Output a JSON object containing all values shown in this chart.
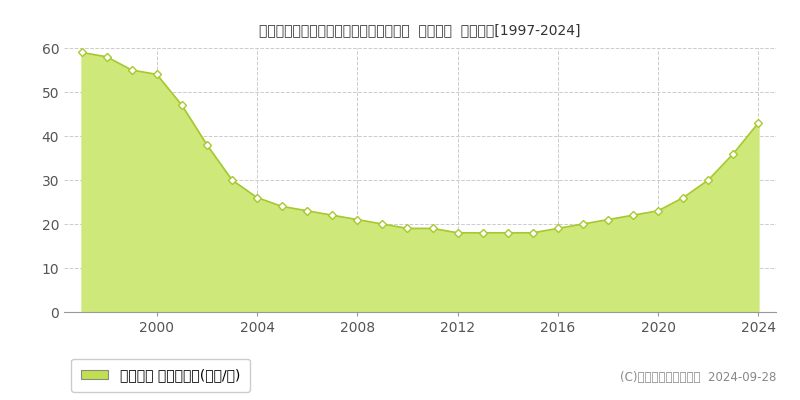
{
  "title": "福岡県福岡市東区多の津２丁目７番２２  基準地価  地価推移[1997-2024]",
  "years": [
    1997,
    1998,
    1999,
    2000,
    2001,
    2002,
    2003,
    2004,
    2005,
    2006,
    2007,
    2008,
    2009,
    2010,
    2011,
    2012,
    2013,
    2014,
    2015,
    2016,
    2017,
    2018,
    2019,
    2020,
    2021,
    2022,
    2023,
    2024
  ],
  "values": [
    59,
    58,
    55,
    54,
    47,
    38,
    30,
    26,
    24,
    23,
    22,
    21,
    20,
    19,
    19,
    18,
    18,
    18,
    18,
    19,
    20,
    21,
    22,
    23,
    26,
    30,
    36,
    43
  ],
  "fill_color": "#cfe87a",
  "line_color": "#a8c830",
  "marker_facecolor": "#ffffff",
  "marker_edgecolor": "#a8c830",
  "bg_color": "#ffffff",
  "grid_color": "#cccccc",
  "ylim": [
    0,
    60
  ],
  "yticks": [
    0,
    10,
    20,
    30,
    40,
    50,
    60
  ],
  "xlim_start": 1996.3,
  "xlim_end": 2024.7,
  "xticks": [
    2000,
    2004,
    2008,
    2012,
    2016,
    2020,
    2024
  ],
  "legend_label": "基準地価 平均坪単価(万円/坪)",
  "legend_color": "#c0e050",
  "copyright_text": "(C)土地価格ドットコム  2024-09-28",
  "title_fontsize": 12,
  "tick_fontsize": 10,
  "legend_fontsize": 10,
  "copyright_fontsize": 8.5
}
